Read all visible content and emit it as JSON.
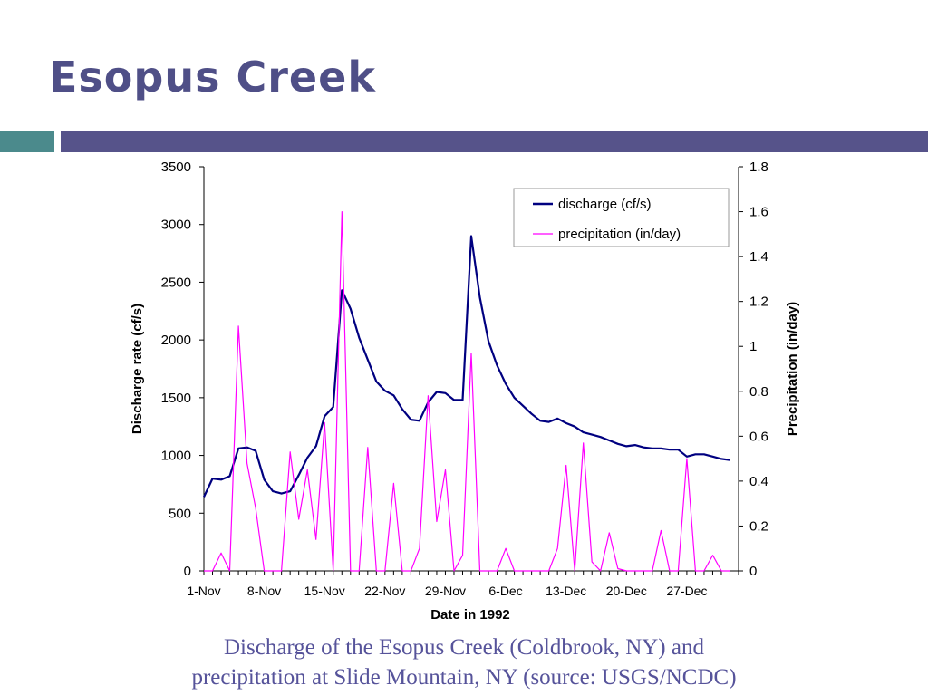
{
  "slide": {
    "title": "Esopus Creek",
    "caption_line1": "Discharge of the Esopus Creek (Coldbrook, NY) and",
    "caption_line2": "precipitation at Slide Mountain, NY (source: USGS/NCDC)"
  },
  "colors": {
    "title": "#4f4f87",
    "accent_teal": "#4b8a8c",
    "accent_purple": "#56538a",
    "discharge": "#000080",
    "precipitation": "#ff00ff",
    "caption": "#56539a"
  },
  "chart_data": {
    "type": "line",
    "xlabel": "Date in 1992",
    "ylabel_left": "Discharge rate (cf/s)",
    "ylabel_right": "Precipitation (in/day)",
    "ylim_left": [
      0,
      3500
    ],
    "ylim_right": [
      0,
      1.8
    ],
    "yticks_left": [
      "0",
      "500",
      "1000",
      "1500",
      "2000",
      "2500",
      "3000",
      "3500"
    ],
    "yticks_right": [
      "0",
      "0.2",
      "0.4",
      "0.6",
      "0.8",
      "1",
      "1.2",
      "1.4",
      "1.6",
      "1.8"
    ],
    "x_tick_labels": [
      "1-Nov",
      "8-Nov",
      "15-Nov",
      "22-Nov",
      "29-Nov",
      "6-Dec",
      "13-Dec",
      "20-Dec",
      "27-Dec"
    ],
    "x_start": "1992-11-01",
    "grid": false,
    "legend_position": "top-right",
    "series": [
      {
        "name": "discharge (cf/s)",
        "axis": "left",
        "color": "#000080",
        "values": [
          640,
          800,
          790,
          820,
          1060,
          1070,
          1040,
          790,
          690,
          670,
          690,
          830,
          980,
          1080,
          1340,
          1420,
          2430,
          2270,
          2020,
          1830,
          1640,
          1560,
          1520,
          1400,
          1310,
          1300,
          1460,
          1550,
          1540,
          1480,
          1480,
          2900,
          2370,
          1990,
          1780,
          1620,
          1500,
          1430,
          1360,
          1300,
          1290,
          1320,
          1280,
          1250,
          1200,
          1180,
          1160,
          1130,
          1100,
          1080,
          1090,
          1070,
          1060,
          1060,
          1050,
          1050,
          990,
          1010,
          1010,
          990,
          970,
          960
        ]
      },
      {
        "name": "precipitation (in/day)",
        "axis": "right",
        "color": "#ff00ff",
        "values": [
          0,
          0,
          0.08,
          0,
          1.09,
          0.48,
          0.28,
          0,
          0,
          0,
          0.53,
          0.23,
          0.45,
          0.14,
          0.66,
          0,
          1.6,
          0,
          0,
          0.55,
          0,
          0,
          0.39,
          0,
          0,
          0.1,
          0.78,
          0.22,
          0.45,
          0,
          0.07,
          0.97,
          0,
          0,
          0,
          0.1,
          0,
          0,
          0,
          0,
          0,
          0.1,
          0.47,
          0,
          0.57,
          0.04,
          0,
          0.17,
          0.01,
          0,
          0,
          0,
          0,
          0.18,
          0,
          0,
          0.5,
          0,
          0,
          0.07,
          0,
          0
        ]
      }
    ]
  }
}
